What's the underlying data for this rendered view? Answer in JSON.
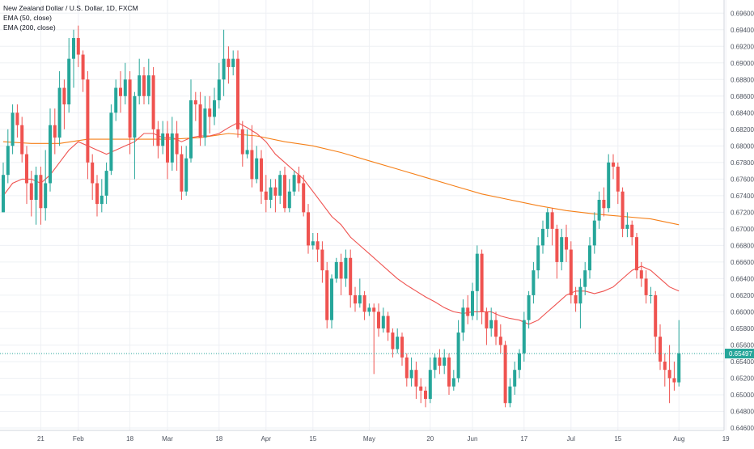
{
  "header": {
    "title": "New Zealand Dollar / U.S. Dollar, 1D, FXCM",
    "indicator_1": "EMA (50, close)",
    "indicator_2": "EMA (200, close)"
  },
  "colors": {
    "up": "#26a69a",
    "down": "#ef5350",
    "ema50": "#ef5350",
    "ema200": "#f57f17",
    "grid": "#eef0f4",
    "axis_text": "#4c525e",
    "price_line": "#26a69a",
    "price_tag_bg": "#26a69a"
  },
  "chart_data": {
    "type": "candlestick",
    "title": "New Zealand Dollar / U.S. Dollar, 1D, FXCM",
    "ylim": [
      0.646,
      0.697
    ],
    "y_ticks": [
      "0.69600",
      "0.69400",
      "0.69200",
      "0.69000",
      "0.68800",
      "0.68600",
      "0.68400",
      "0.68200",
      "0.68000",
      "0.67800",
      "0.67600",
      "0.67400",
      "0.67200",
      "0.67000",
      "0.66800",
      "0.66600",
      "0.66400",
      "0.66200",
      "0.66000",
      "0.65800",
      "0.65600",
      "0.65400",
      "0.65200",
      "0.65000",
      "0.64800",
      "0.64600"
    ],
    "x_ticks": [
      {
        "label": "21",
        "bar": 8
      },
      {
        "label": "Feb",
        "bar": 16
      },
      {
        "label": "18",
        "bar": 27
      },
      {
        "label": "Mar",
        "bar": 35
      },
      {
        "label": "18",
        "bar": 46
      },
      {
        "label": "Apr",
        "bar": 56
      },
      {
        "label": "15",
        "bar": 66
      },
      {
        "label": "May",
        "bar": 78
      },
      {
        "label": "20",
        "bar": 91
      },
      {
        "label": "Jun",
        "bar": 100
      },
      {
        "label": "17",
        "bar": 111
      },
      {
        "label": "Jul",
        "bar": 121
      },
      {
        "label": "15",
        "bar": 131
      },
      {
        "label": "Aug",
        "bar": 144
      },
      {
        "label": "19",
        "bar": 154
      }
    ],
    "last_price": "0.65497",
    "last_price_value": 0.65497,
    "candles": [
      [
        0.672,
        0.6765,
        0.672,
        0.678
      ],
      [
        0.6765,
        0.68,
        0.6755,
        0.682
      ],
      [
        0.68,
        0.684,
        0.679,
        0.685
      ],
      [
        0.684,
        0.6825,
        0.681,
        0.685
      ],
      [
        0.6825,
        0.679,
        0.678,
        0.6835
      ],
      [
        0.679,
        0.6755,
        0.673,
        0.68
      ],
      [
        0.6755,
        0.6735,
        0.6715,
        0.677
      ],
      [
        0.6735,
        0.6765,
        0.6705,
        0.6775
      ],
      [
        0.6765,
        0.6725,
        0.6705,
        0.6775
      ],
      [
        0.6725,
        0.6755,
        0.671,
        0.6795
      ],
      [
        0.6755,
        0.6825,
        0.6745,
        0.6845
      ],
      [
        0.6825,
        0.681,
        0.679,
        0.6845
      ],
      [
        0.681,
        0.687,
        0.68,
        0.689
      ],
      [
        0.687,
        0.685,
        0.682,
        0.688
      ],
      [
        0.685,
        0.6905,
        0.684,
        0.693
      ],
      [
        0.6905,
        0.693,
        0.687,
        0.694
      ],
      [
        0.693,
        0.691,
        0.6895,
        0.6945
      ],
      [
        0.691,
        0.688,
        0.6865,
        0.6915
      ],
      [
        0.688,
        0.678,
        0.676,
        0.689
      ],
      [
        0.678,
        0.6755,
        0.6735,
        0.679
      ],
      [
        0.6755,
        0.673,
        0.6715,
        0.6765
      ],
      [
        0.673,
        0.674,
        0.672,
        0.676
      ],
      [
        0.674,
        0.677,
        0.673,
        0.678
      ],
      [
        0.677,
        0.684,
        0.6765,
        0.685
      ],
      [
        0.684,
        0.687,
        0.683,
        0.688
      ],
      [
        0.687,
        0.686,
        0.684,
        0.689
      ],
      [
        0.686,
        0.688,
        0.685,
        0.69
      ],
      [
        0.688,
        0.681,
        0.679,
        0.689
      ],
      [
        0.681,
        0.686,
        0.676,
        0.6865
      ],
      [
        0.686,
        0.6885,
        0.685,
        0.6905
      ],
      [
        0.6885,
        0.686,
        0.685,
        0.6895
      ],
      [
        0.686,
        0.6885,
        0.685,
        0.6905
      ],
      [
        0.6885,
        0.682,
        0.68,
        0.6895
      ],
      [
        0.682,
        0.68,
        0.6785,
        0.683
      ],
      [
        0.68,
        0.6815,
        0.679,
        0.683
      ],
      [
        0.6815,
        0.678,
        0.676,
        0.683
      ],
      [
        0.678,
        0.6815,
        0.677,
        0.6835
      ],
      [
        0.6815,
        0.679,
        0.677,
        0.683
      ],
      [
        0.679,
        0.6745,
        0.6735,
        0.68
      ],
      [
        0.6745,
        0.6785,
        0.674,
        0.68
      ],
      [
        0.6785,
        0.6855,
        0.678,
        0.688
      ],
      [
        0.6855,
        0.685,
        0.683,
        0.6865
      ],
      [
        0.685,
        0.681,
        0.68,
        0.6865
      ],
      [
        0.681,
        0.6845,
        0.68,
        0.686
      ],
      [
        0.6845,
        0.6835,
        0.6815,
        0.686
      ],
      [
        0.6835,
        0.6855,
        0.6825,
        0.687
      ],
      [
        0.6855,
        0.688,
        0.6845,
        0.69
      ],
      [
        0.688,
        0.6905,
        0.686,
        0.694
      ],
      [
        0.6905,
        0.6895,
        0.6875,
        0.692
      ],
      [
        0.6895,
        0.6905,
        0.6885,
        0.6915
      ],
      [
        0.6905,
        0.682,
        0.681,
        0.6915
      ],
      [
        0.682,
        0.679,
        0.6775,
        0.683
      ],
      [
        0.679,
        0.6795,
        0.6785,
        0.682
      ],
      [
        0.6795,
        0.676,
        0.675,
        0.6825
      ],
      [
        0.676,
        0.6785,
        0.6755,
        0.68
      ],
      [
        0.6785,
        0.6745,
        0.673,
        0.6795
      ],
      [
        0.6745,
        0.6735,
        0.672,
        0.6765
      ],
      [
        0.6735,
        0.675,
        0.6725,
        0.676
      ],
      [
        0.675,
        0.674,
        0.672,
        0.676
      ],
      [
        0.674,
        0.6765,
        0.673,
        0.677
      ],
      [
        0.6765,
        0.6725,
        0.672,
        0.6775
      ],
      [
        0.6725,
        0.6745,
        0.672,
        0.676
      ],
      [
        0.6745,
        0.6765,
        0.674,
        0.677
      ],
      [
        0.6765,
        0.6755,
        0.6745,
        0.6775
      ],
      [
        0.6755,
        0.672,
        0.6715,
        0.6765
      ],
      [
        0.672,
        0.668,
        0.667,
        0.673
      ],
      [
        0.668,
        0.6685,
        0.6675,
        0.6695
      ],
      [
        0.6685,
        0.6675,
        0.666,
        0.6695
      ],
      [
        0.6675,
        0.665,
        0.6635,
        0.6685
      ],
      [
        0.665,
        0.659,
        0.658,
        0.666
      ],
      [
        0.659,
        0.664,
        0.658,
        0.6645
      ],
      [
        0.664,
        0.666,
        0.6635,
        0.6665
      ],
      [
        0.666,
        0.664,
        0.662,
        0.667
      ],
      [
        0.664,
        0.6665,
        0.663,
        0.6675
      ],
      [
        0.6665,
        0.662,
        0.6605,
        0.6675
      ],
      [
        0.662,
        0.661,
        0.66,
        0.663
      ],
      [
        0.661,
        0.662,
        0.6605,
        0.664
      ],
      [
        0.662,
        0.66,
        0.659,
        0.6625
      ],
      [
        0.66,
        0.6605,
        0.6595,
        0.661
      ],
      [
        0.6605,
        0.66,
        0.6525,
        0.661
      ],
      [
        0.66,
        0.658,
        0.657,
        0.661
      ],
      [
        0.658,
        0.6595,
        0.6575,
        0.6605
      ],
      [
        0.6595,
        0.6575,
        0.6565,
        0.66
      ],
      [
        0.6575,
        0.6555,
        0.6545,
        0.658
      ],
      [
        0.6555,
        0.657,
        0.655,
        0.658
      ],
      [
        0.657,
        0.6545,
        0.6535,
        0.6575
      ],
      [
        0.6545,
        0.652,
        0.651,
        0.655
      ],
      [
        0.652,
        0.653,
        0.651,
        0.6545
      ],
      [
        0.653,
        0.651,
        0.6495,
        0.654
      ],
      [
        0.651,
        0.6505,
        0.649,
        0.652
      ],
      [
        0.6505,
        0.6495,
        0.6485,
        0.651
      ],
      [
        0.6495,
        0.653,
        0.649,
        0.6545
      ],
      [
        0.653,
        0.6545,
        0.652,
        0.655
      ],
      [
        0.6545,
        0.6535,
        0.6525,
        0.6555
      ],
      [
        0.6535,
        0.6545,
        0.6525,
        0.6555
      ],
      [
        0.6545,
        0.651,
        0.65,
        0.655
      ],
      [
        0.651,
        0.652,
        0.6505,
        0.653
      ],
      [
        0.652,
        0.6575,
        0.6515,
        0.659
      ],
      [
        0.6575,
        0.6605,
        0.6565,
        0.6615
      ],
      [
        0.6605,
        0.6595,
        0.6585,
        0.662
      ],
      [
        0.6595,
        0.6625,
        0.659,
        0.6635
      ],
      [
        0.6625,
        0.667,
        0.659,
        0.668
      ],
      [
        0.667,
        0.66,
        0.6585,
        0.6675
      ],
      [
        0.66,
        0.658,
        0.656,
        0.6605
      ],
      [
        0.658,
        0.659,
        0.657,
        0.6605
      ],
      [
        0.659,
        0.657,
        0.656,
        0.66
      ],
      [
        0.657,
        0.656,
        0.655,
        0.6585
      ],
      [
        0.656,
        0.649,
        0.6485,
        0.6565
      ],
      [
        0.649,
        0.651,
        0.6485,
        0.652
      ],
      [
        0.651,
        0.653,
        0.65,
        0.654
      ],
      [
        0.653,
        0.655,
        0.652,
        0.6555
      ],
      [
        0.655,
        0.659,
        0.654,
        0.66
      ],
      [
        0.659,
        0.662,
        0.658,
        0.6625
      ],
      [
        0.662,
        0.665,
        0.661,
        0.666
      ],
      [
        0.665,
        0.668,
        0.664,
        0.669
      ],
      [
        0.668,
        0.67,
        0.667,
        0.671
      ],
      [
        0.67,
        0.672,
        0.669,
        0.6725
      ],
      [
        0.672,
        0.67,
        0.668,
        0.6725
      ],
      [
        0.67,
        0.666,
        0.664,
        0.6705
      ],
      [
        0.666,
        0.669,
        0.665,
        0.67
      ],
      [
        0.669,
        0.6675,
        0.666,
        0.6705
      ],
      [
        0.6675,
        0.662,
        0.661,
        0.6685
      ],
      [
        0.662,
        0.661,
        0.66,
        0.663
      ],
      [
        0.661,
        0.663,
        0.658,
        0.664
      ],
      [
        0.663,
        0.665,
        0.662,
        0.666
      ],
      [
        0.665,
        0.668,
        0.664,
        0.669
      ],
      [
        0.668,
        0.671,
        0.667,
        0.672
      ],
      [
        0.671,
        0.6735,
        0.67,
        0.6745
      ],
      [
        0.6735,
        0.6725,
        0.6715,
        0.675
      ],
      [
        0.6725,
        0.678,
        0.672,
        0.679
      ],
      [
        0.678,
        0.6775,
        0.676,
        0.679
      ],
      [
        0.6775,
        0.6745,
        0.673,
        0.678
      ],
      [
        0.6745,
        0.67,
        0.669,
        0.675
      ],
      [
        0.67,
        0.6705,
        0.669,
        0.672
      ],
      [
        0.6705,
        0.669,
        0.668,
        0.671
      ],
      [
        0.669,
        0.665,
        0.664,
        0.6695
      ],
      [
        0.665,
        0.664,
        0.663,
        0.666
      ],
      [
        0.664,
        0.662,
        0.661,
        0.665
      ],
      [
        0.662,
        0.662,
        0.661,
        0.663
      ],
      [
        0.662,
        0.657,
        0.655,
        0.6625
      ],
      [
        0.657,
        0.654,
        0.653,
        0.6585
      ],
      [
        0.654,
        0.653,
        0.651,
        0.655
      ],
      [
        0.653,
        0.652,
        0.649,
        0.656
      ],
      [
        0.652,
        0.6515,
        0.6505,
        0.654
      ],
      [
        0.6515,
        0.655,
        0.651,
        0.659
      ]
    ],
    "ema50": [
      [
        0,
        0.674
      ],
      [
        2,
        0.6755
      ],
      [
        4,
        0.676
      ],
      [
        6,
        0.676
      ],
      [
        8,
        0.6755
      ],
      [
        10,
        0.6765
      ],
      [
        12,
        0.678
      ],
      [
        14,
        0.6795
      ],
      [
        16,
        0.6805
      ],
      [
        18,
        0.68
      ],
      [
        20,
        0.6795
      ],
      [
        22,
        0.679
      ],
      [
        24,
        0.6795
      ],
      [
        26,
        0.68
      ],
      [
        28,
        0.6805
      ],
      [
        30,
        0.6815
      ],
      [
        32,
        0.6815
      ],
      [
        34,
        0.681
      ],
      [
        36,
        0.681
      ],
      [
        38,
        0.6805
      ],
      [
        40,
        0.681
      ],
      [
        42,
        0.6812
      ],
      [
        44,
        0.6812
      ],
      [
        46,
        0.6815
      ],
      [
        48,
        0.6822
      ],
      [
        50,
        0.6828
      ],
      [
        52,
        0.6822
      ],
      [
        54,
        0.6815
      ],
      [
        56,
        0.6805
      ],
      [
        58,
        0.679
      ],
      [
        60,
        0.678
      ],
      [
        62,
        0.677
      ],
      [
        64,
        0.676
      ],
      [
        66,
        0.6745
      ],
      [
        68,
        0.673
      ],
      [
        70,
        0.6715
      ],
      [
        72,
        0.6705
      ],
      [
        74,
        0.669
      ],
      [
        76,
        0.668
      ],
      [
        78,
        0.667
      ],
      [
        80,
        0.666
      ],
      [
        82,
        0.665
      ],
      [
        84,
        0.664
      ],
      [
        86,
        0.6632
      ],
      [
        88,
        0.6625
      ],
      [
        90,
        0.6618
      ],
      [
        92,
        0.6612
      ],
      [
        94,
        0.6605
      ],
      [
        96,
        0.66
      ],
      [
        98,
        0.6598
      ],
      [
        100,
        0.66
      ],
      [
        102,
        0.66
      ],
      [
        104,
        0.66
      ],
      [
        106,
        0.6595
      ],
      [
        108,
        0.6592
      ],
      [
        110,
        0.659
      ],
      [
        112,
        0.6585
      ],
      [
        114,
        0.659
      ],
      [
        116,
        0.66
      ],
      [
        118,
        0.661
      ],
      [
        120,
        0.662
      ],
      [
        122,
        0.6625
      ],
      [
        124,
        0.6625
      ],
      [
        126,
        0.6622
      ],
      [
        128,
        0.6625
      ],
      [
        130,
        0.663
      ],
      [
        132,
        0.664
      ],
      [
        134,
        0.665
      ],
      [
        136,
        0.6655
      ],
      [
        138,
        0.665
      ],
      [
        140,
        0.664
      ],
      [
        142,
        0.663
      ],
      [
        144,
        0.6625
      ]
    ],
    "ema200": [
      [
        0,
        0.6805
      ],
      [
        6,
        0.6803
      ],
      [
        12,
        0.6803
      ],
      [
        18,
        0.6808
      ],
      [
        24,
        0.6808
      ],
      [
        30,
        0.6808
      ],
      [
        36,
        0.6808
      ],
      [
        42,
        0.681
      ],
      [
        48,
        0.6815
      ],
      [
        54,
        0.6812
      ],
      [
        60,
        0.6805
      ],
      [
        66,
        0.68
      ],
      [
        72,
        0.6792
      ],
      [
        78,
        0.6782
      ],
      [
        84,
        0.6772
      ],
      [
        90,
        0.6762
      ],
      [
        96,
        0.6752
      ],
      [
        102,
        0.6742
      ],
      [
        108,
        0.6735
      ],
      [
        114,
        0.6728
      ],
      [
        120,
        0.6722
      ],
      [
        126,
        0.6718
      ],
      [
        132,
        0.6715
      ],
      [
        138,
        0.6712
      ],
      [
        144,
        0.6705
      ]
    ]
  }
}
